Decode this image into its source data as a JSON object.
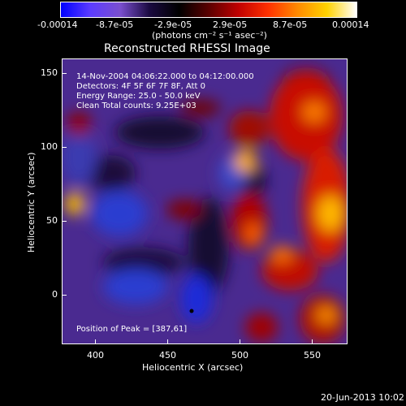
{
  "colorbar": {
    "labels": [
      "-0.00014",
      "-8.7e-05",
      "-2.9e-05",
      "2.9e-05",
      "8.7e-05",
      "0.00014"
    ],
    "units": "(photons cm⁻² s⁻¹ asec⁻²)",
    "gradient_stops": [
      "#0000ff",
      "#5c3cff",
      "#7a4fcf",
      "#1a0a40",
      "#000000",
      "#5a0000",
      "#c00000",
      "#ff3000",
      "#ff8a00",
      "#ffd200",
      "#ffffff"
    ]
  },
  "plot": {
    "title": "Reconstructed RHESSI Image",
    "annotations": {
      "time": "14-Nov-2004 04:06:22.000 to 04:12:00.000",
      "detectors": "Detectors: 4F 5F 6F 7F 8F, Att 0",
      "energy": "Energy Range: 25.0 - 50.0 keV",
      "clean": "Clean     Total counts: 9.25E+03"
    },
    "peak_label": "Position of Peak = [387,61]",
    "x_axis": {
      "label": "Heliocentric X (arcsec)",
      "ticks": [
        "400",
        "450",
        "500",
        "550"
      ]
    },
    "y_axis": {
      "label": "Heliocentric Y (arcsec)",
      "ticks": [
        "150",
        "100",
        "50",
        "0"
      ]
    }
  },
  "footer": {
    "date": "20-Jun-2013 10:02"
  }
}
